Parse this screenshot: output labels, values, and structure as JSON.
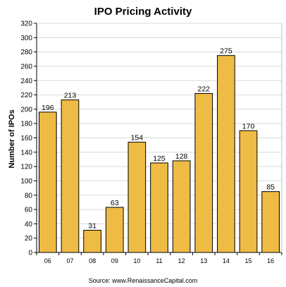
{
  "chart_data": {
    "type": "bar",
    "title": "IPO Pricing Activity",
    "xlabel": "",
    "ylabel": "Number of IPOs",
    "categories": [
      "06",
      "07",
      "08",
      "09",
      "10",
      "11",
      "12",
      "13",
      "14",
      "15",
      "16"
    ],
    "values": [
      196,
      213,
      31,
      63,
      154,
      125,
      128,
      222,
      275,
      170,
      85
    ],
    "ylim": [
      0,
      320
    ],
    "yticks": [
      0,
      20,
      40,
      60,
      80,
      100,
      120,
      140,
      160,
      180,
      200,
      220,
      240,
      260,
      280,
      300,
      320
    ],
    "grid": true,
    "legend": "none",
    "data_labels": true,
    "bar_color": "#eebb44",
    "source": "Source: www.RenaissanceCapital.com"
  }
}
